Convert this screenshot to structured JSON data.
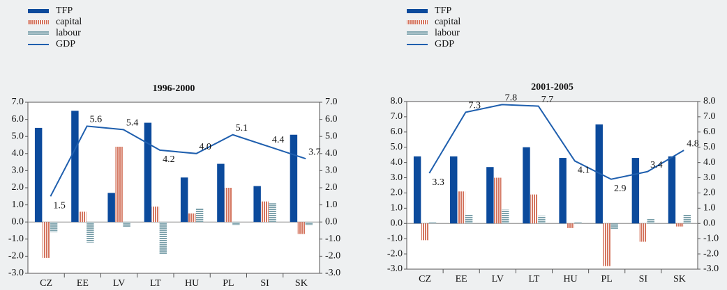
{
  "chart_data": [
    {
      "type": "bar",
      "title": "1996-2000",
      "categories": [
        "CZ",
        "EE",
        "LV",
        "LT",
        "HU",
        "PL",
        "SI",
        "SK"
      ],
      "series": [
        {
          "name": "TFP",
          "color": "#0b4a9c",
          "values": [
            5.5,
            6.5,
            1.7,
            5.8,
            2.6,
            3.4,
            2.1,
            5.1
          ]
        },
        {
          "name": "capital",
          "color": "#d4755f",
          "hatch": "vertical",
          "values": [
            -2.1,
            0.6,
            4.4,
            0.9,
            0.5,
            2.0,
            1.2,
            -0.7
          ]
        },
        {
          "name": "labour",
          "color": "#7fa3ad",
          "hatch": "horizontal",
          "values": [
            -0.6,
            -1.2,
            -0.3,
            -1.9,
            0.8,
            -0.2,
            1.1,
            -0.2
          ]
        },
        {
          "name": "GDP",
          "color": "#1f5fae",
          "type": "line",
          "axis": "y2",
          "values": [
            1.5,
            5.6,
            5.4,
            4.2,
            4.0,
            5.1,
            4.4,
            3.7
          ],
          "value_labels": [
            "1.5",
            "5.6",
            "5.4",
            "4.2",
            "4.0",
            "5.1",
            "4.4",
            "3.7"
          ]
        }
      ],
      "ylim": [
        -3,
        7
      ],
      "yticks": [
        {
          "value": -3,
          "label": "-3.0"
        },
        {
          "value": -2,
          "label": "-2.0"
        },
        {
          "value": -1,
          "label": "-1.0"
        },
        {
          "value": 0,
          "label": "0.0"
        },
        {
          "value": 1,
          "label": "1.0"
        },
        {
          "value": 2,
          "label": "2.0"
        },
        {
          "value": 3,
          "label": "3.0"
        },
        {
          "value": 4,
          "label": "4.0"
        },
        {
          "value": 5,
          "label": "5.0"
        },
        {
          "value": 6,
          "label": "6.0"
        },
        {
          "value": 7,
          "label": "7.0"
        }
      ],
      "y2lim": [
        -3,
        7
      ],
      "y2ticks": [
        {
          "value": -3,
          "label": "-3.0"
        },
        {
          "value": -2,
          "label": "-2.0"
        },
        {
          "value": -1,
          "label": "-1.0"
        },
        {
          "value": 0,
          "label": "0.0"
        },
        {
          "value": 1,
          "label": "1.0"
        },
        {
          "value": 2,
          "label": "2.0"
        },
        {
          "value": 3,
          "label": "3.0"
        },
        {
          "value": 4,
          "label": "4.0"
        },
        {
          "value": 5,
          "label": "5.0"
        },
        {
          "value": 6,
          "label": "6.0"
        },
        {
          "value": 7,
          "label": "7.0"
        }
      ]
    },
    {
      "type": "bar",
      "title": "2001-2005",
      "categories": [
        "CZ",
        "EE",
        "LV",
        "LT",
        "HU",
        "PL",
        "SI",
        "SK"
      ],
      "series": [
        {
          "name": "TFP",
          "color": "#0b4a9c",
          "values": [
            4.4,
            4.4,
            3.7,
            5.0,
            4.3,
            6.5,
            4.3,
            4.4
          ]
        },
        {
          "name": "capital",
          "color": "#d4755f",
          "hatch": "vertical",
          "values": [
            -1.1,
            2.1,
            3.0,
            1.9,
            -0.3,
            -2.8,
            -1.2,
            -0.2
          ]
        },
        {
          "name": "labour",
          "color": "#7fa3ad",
          "hatch": "horizontal",
          "values": [
            0.1,
            0.6,
            0.9,
            0.5,
            0.1,
            -0.4,
            0.3,
            0.6
          ]
        },
        {
          "name": "GDP",
          "color": "#1f5fae",
          "type": "line",
          "axis": "y2",
          "values": [
            3.3,
            7.3,
            7.8,
            7.7,
            4.1,
            2.9,
            3.4,
            4.8
          ],
          "value_labels": [
            "3.3",
            "7.3",
            "7.8",
            "7.7",
            "4.1",
            "2.9",
            "3.4",
            "4.8"
          ]
        }
      ],
      "ylim": [
        -3,
        8
      ],
      "yticks": [
        {
          "value": -3,
          "label": "-3.0"
        },
        {
          "value": -2,
          "label": "-2.0"
        },
        {
          "value": -1,
          "label": "-1.0"
        },
        {
          "value": 0,
          "label": "0.0"
        },
        {
          "value": 1,
          "label": "1.0"
        },
        {
          "value": 2,
          "label": "2.0"
        },
        {
          "value": 3,
          "label": "3.0"
        },
        {
          "value": 4,
          "label": "4.0"
        },
        {
          "value": 5,
          "label": "5.0"
        },
        {
          "value": 6,
          "label": "6.0"
        },
        {
          "value": 7,
          "label": "7.0"
        },
        {
          "value": 8,
          "label": "8.0"
        }
      ],
      "y2lim": [
        -3,
        8
      ],
      "y2ticks": [
        {
          "value": -3,
          "label": "-3.0"
        },
        {
          "value": -2,
          "label": "-2.0"
        },
        {
          "value": -1,
          "label": "-1.0"
        },
        {
          "value": 0,
          "label": "0.0"
        },
        {
          "value": 1,
          "label": "1.0"
        },
        {
          "value": 2,
          "label": "2.0"
        },
        {
          "value": 3,
          "label": "3.0"
        },
        {
          "value": 4,
          "label": "4.0"
        },
        {
          "value": 5,
          "label": "5.0"
        },
        {
          "value": 6,
          "label": "6.0"
        },
        {
          "value": 7,
          "label": "7.0"
        },
        {
          "value": 8,
          "label": "8.0"
        }
      ]
    }
  ]
}
